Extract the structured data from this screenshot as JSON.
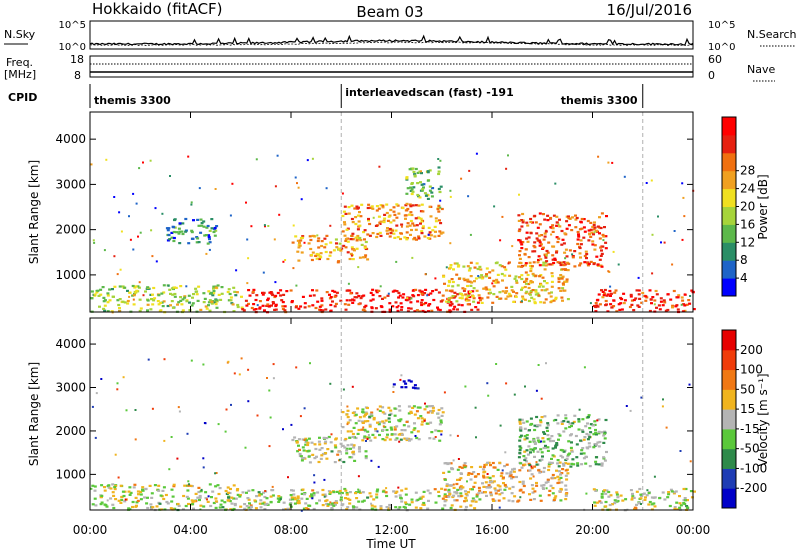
{
  "header": {
    "station": "Hokkaido (fitACF)",
    "beam": "Beam 03",
    "date": "16/Jul/2016"
  },
  "summary": {
    "nsky_label": "N.Sky",
    "nsky_ticks": [
      "10^5",
      "10^0"
    ],
    "nsearch_label": "N.Search",
    "nsearch_ticks": [
      "10^5",
      "10^0"
    ],
    "freq_label_top": "Freq.",
    "freq_label_bottom": "[MHz]",
    "freq_ticks": [
      "18",
      "8"
    ],
    "nave_label": "Nave",
    "nave_ticks": [
      "60",
      "0"
    ],
    "cpid_label": "CPID",
    "cpid_segments": [
      {
        "label": "themis 3300",
        "start_hour": 0,
        "end_hour": 10
      },
      {
        "label": "interleavedscan (fast) -191",
        "start_hour": 10,
        "end_hour": 22
      },
      {
        "label": "themis 3300",
        "start_hour": 22,
        "end_hour": 24
      }
    ]
  },
  "chart_data": [
    {
      "type": "heatmap",
      "name": "power-panel",
      "ylabel": "Slant Range [km]",
      "xlabel": "",
      "x_range_hours": [
        0,
        24
      ],
      "ylim": [
        180,
        4600
      ],
      "y_ticks": [
        1000,
        2000,
        3000,
        4000
      ],
      "colorbar": {
        "label": "Power [dB]",
        "ticks": [
          4,
          8,
          12,
          16,
          20,
          24,
          28
        ],
        "colors": [
          "#0000ff",
          "#1e64c8",
          "#2a8e66",
          "#5cb84a",
          "#a6d43a",
          "#f0e020",
          "#f0a020",
          "#f07010",
          "#e62010",
          "#ff0000"
        ]
      },
      "regions": [
        {
          "x0": 0.0,
          "x1": 6.0,
          "y0": 200,
          "y1": 800,
          "level": 0.45
        },
        {
          "x0": 6.0,
          "x1": 15.5,
          "y0": 200,
          "y1": 700,
          "level": 0.92
        },
        {
          "x0": 8.0,
          "x1": 11.0,
          "y0": 1300,
          "y1": 1900,
          "level": 0.65
        },
        {
          "x0": 10.0,
          "x1": 14.0,
          "y0": 1800,
          "y1": 2600,
          "level": 0.7
        },
        {
          "x0": 12.5,
          "x1": 14.0,
          "y0": 2700,
          "y1": 3400,
          "level": 0.35
        },
        {
          "x0": 14.0,
          "x1": 19.0,
          "y0": 400,
          "y1": 1300,
          "level": 0.6
        },
        {
          "x0": 17.0,
          "x1": 20.5,
          "y0": 1200,
          "y1": 2400,
          "level": 0.8
        },
        {
          "x0": 20.0,
          "x1": 24.0,
          "y0": 200,
          "y1": 700,
          "level": 0.85
        },
        {
          "x0": 3.0,
          "x1": 5.0,
          "y0": 1700,
          "y1": 2300,
          "level": 0.25
        }
      ]
    },
    {
      "type": "heatmap",
      "name": "velocity-panel",
      "ylabel": "Slant Range [km]",
      "xlabel": "Time UT",
      "x_ticks": [
        "00:00",
        "04:00",
        "08:00",
        "12:00",
        "16:00",
        "20:00",
        "00:00"
      ],
      "x_range_hours": [
        0,
        24
      ],
      "ylim": [
        180,
        4600
      ],
      "y_ticks": [
        1000,
        2000,
        3000,
        4000
      ],
      "colorbar": {
        "label": "Velocity [m s⁻¹]",
        "ticks": [
          200,
          100,
          50,
          15,
          -15,
          -50,
          -100,
          -200
        ],
        "colors": [
          "#0000c8",
          "#1e3cb4",
          "#2e8a4a",
          "#5ac83a",
          "#b4b4b4",
          "#f0b41e",
          "#f07814",
          "#f03c0a",
          "#e60000"
        ]
      },
      "regions": [
        {
          "x0": 0.0,
          "x1": 6.0,
          "y0": 200,
          "y1": 800,
          "level": 0.5
        },
        {
          "x0": 6.0,
          "x1": 15.5,
          "y0": 200,
          "y1": 700,
          "level": 0.5
        },
        {
          "x0": 8.0,
          "x1": 11.0,
          "y0": 1300,
          "y1": 1900,
          "level": 0.5
        },
        {
          "x0": 10.0,
          "x1": 14.0,
          "y0": 1800,
          "y1": 2600,
          "level": 0.5
        },
        {
          "x0": 12.0,
          "x1": 13.0,
          "y0": 3000,
          "y1": 3200,
          "level": 0.0
        },
        {
          "x0": 14.0,
          "x1": 19.0,
          "y0": 400,
          "y1": 1300,
          "level": 0.6
        },
        {
          "x0": 17.0,
          "x1": 20.5,
          "y0": 1200,
          "y1": 2400,
          "level": 0.4
        },
        {
          "x0": 20.0,
          "x1": 24.0,
          "y0": 200,
          "y1": 700,
          "level": 0.5
        }
      ]
    }
  ],
  "colors": {
    "frame": "#000000",
    "dash": "#b0b0b0"
  }
}
